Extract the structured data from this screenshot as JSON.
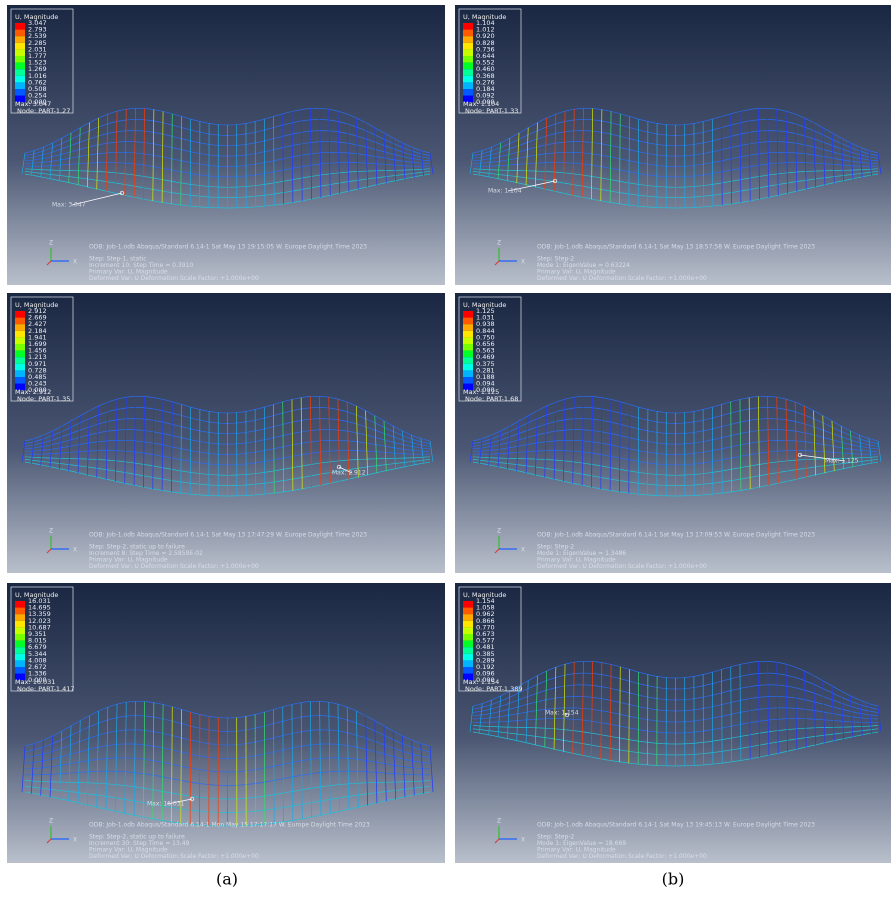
{
  "triad": [
    "Z",
    "X"
  ],
  "captions": [
    "(a)",
    "(b)"
  ],
  "panels": [
    {
      "legend_title": "U, Magnitude",
      "legend_values": [
        "3.047",
        "2.793",
        "2.539",
        "2.285",
        "2.031",
        "1.777",
        "1.523",
        "1.269",
        "1.016",
        "0.762",
        "0.508",
        "0.254",
        "0.000"
      ],
      "max": "Max: 3.047",
      "node": "Node: PART-1.27",
      "annotation": "Max: 3.047",
      "odb": "ODB: Job-1.odb    Abaqus/Standard 6.14-1    Sat May 13 19:15:05 W. Europe Daylight Time 2023",
      "info": [
        "Step: Step-1, static",
        "Increment     10: Step Time =    0.3910",
        "Primary Var: U, Magnitude",
        "Deformed Var: U   Deformation Scale Factor: +1.000e+00"
      ]
    },
    {
      "legend_title": "U, Magnitude",
      "legend_values": [
        "1.104",
        "1.012",
        "0.920",
        "0.828",
        "0.736",
        "0.644",
        "0.552",
        "0.460",
        "0.368",
        "0.276",
        "0.184",
        "0.092",
        "0.000"
      ],
      "max": "Max: 1.104",
      "node": "Node: PART-1.33",
      "annotation": "Max: 1.104",
      "odb": "ODB: Job-1.odb    Abaqus/Standard 6.14-1    Sat May 13 18:57:58 W. Europe Daylight Time 2023",
      "info": [
        "Step: Step-2",
        "Mode         1: EigenValue =  0.63224",
        "Primary Var: U, Magnitude",
        "Deformed Var: U   Deformation Scale Factor: +1.000e+00"
      ]
    },
    {
      "legend_title": "U, Magnitude",
      "legend_values": [
        "2.912",
        "2.669",
        "2.427",
        "2.184",
        "1.941",
        "1.699",
        "1.456",
        "1.213",
        "0.971",
        "0.728",
        "0.485",
        "0.243",
        "0.000"
      ],
      "max": "Max: 2.912",
      "node": "Node: PART-1.35",
      "annotation": "Max: 2.912",
      "odb": "ODB: Job-1.odb    Abaqus/Standard 6.14-1    Sat May 13 17:47:29 W. Europe Daylight Time 2023",
      "info": [
        "Step: Step-2, static up to failure",
        "Increment      8: Step Time =  2.5859E-02",
        "Primary Var: U, Magnitude",
        "Deformed Var: U   Deformation Scale Factor: +1.000e+00"
      ]
    },
    {
      "legend_title": "U, Magnitude",
      "legend_values": [
        "1.125",
        "1.031",
        "0.938",
        "0.844",
        "0.750",
        "0.656",
        "0.563",
        "0.469",
        "0.375",
        "0.281",
        "0.188",
        "0.094",
        "0.000"
      ],
      "max": "Max: 1.125",
      "node": "Node: PART-1.68",
      "annotation": "Max: 1.125",
      "odb": "ODB: Job-1.odb    Abaqus/Standard 6.14-1    Sat May 13 17:09:53 W. Europe Daylight Time 2023",
      "info": [
        "Step: Step-2",
        "Mode         1: EigenValue =   1.3486",
        "Primary Var: U, Magnitude",
        "Deformed Var: U   Deformation Scale Factor: +1.000e+00"
      ]
    },
    {
      "legend_title": "U, Magnitude",
      "legend_values": [
        "16.031",
        "14.695",
        "13.359",
        "12.023",
        "10.687",
        "9.351",
        "8.015",
        "6.679",
        "5.344",
        "4.008",
        "2.672",
        "1.336",
        "0.000"
      ],
      "max": "Max: 16.031",
      "node": "Node: PART-1.417",
      "annotation": "Max: 16.031",
      "odb": "ODB: Job-1.odb    Abaqus/Standard 6.14-1    Mon May 15 17:17:17 W. Europe Daylight Time 2023",
      "info": [
        "Step: Step-2, static up to failure",
        "Increment     30: Step Time =    13.49",
        "Primary Var: U, Magnitude",
        "Deformed Var: U   Deformation Scale Factor: +1.000e+00"
      ]
    },
    {
      "legend_title": "U, Magnitude",
      "legend_values": [
        "1.154",
        "1.058",
        "0.962",
        "0.866",
        "0.770",
        "0.673",
        "0.577",
        "0.481",
        "0.385",
        "0.289",
        "0.192",
        "0.096",
        "0.000"
      ],
      "max": "Max: 1.154",
      "node": "Node: PART-1.389",
      "annotation": "Max: 1.154",
      "odb": "ODB: Job-1.odb    Abaqus/Standard 6.14-1    Sat May 13 19:45:13 W. Europe Daylight Time 2023",
      "info": [
        "Step: Step-2",
        "Mode         1: EigenValue =   18.669",
        "Primary Var: U, Magnitude",
        "Deformed Var: U   Deformation Scale Factor: +1.000e+00"
      ]
    }
  ]
}
